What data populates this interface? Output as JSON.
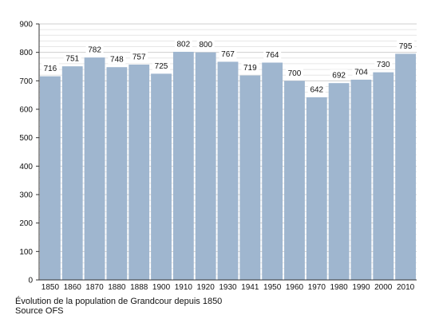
{
  "chart_data": {
    "type": "bar",
    "categories": [
      "1850",
      "1860",
      "1870",
      "1880",
      "1888",
      "1900",
      "1910",
      "1920",
      "1930",
      "1941",
      "1950",
      "1960",
      "1970",
      "1980",
      "1990",
      "2000",
      "2010"
    ],
    "values": [
      716,
      751,
      782,
      748,
      757,
      725,
      802,
      800,
      767,
      719,
      764,
      700,
      642,
      692,
      704,
      730,
      795
    ],
    "data_labels": [
      "716",
      "751",
      "782",
      "748",
      "757",
      "725",
      "802",
      "800",
      "767",
      "719",
      "764",
      "700",
      "642",
      "692",
      "704",
      "730",
      "795"
    ],
    "ylim": [
      0,
      900
    ],
    "y_ticks": [
      "0",
      "100",
      "200",
      "300",
      "400",
      "500",
      "600",
      "700",
      "800",
      "900"
    ],
    "grid": true,
    "bar_color": "#9fb6cf",
    "grid_color": "#cfcfcf",
    "title": "",
    "xlabel": "",
    "ylabel": ""
  },
  "caption": {
    "line1": "Évolution de la population de Grandcour depuis 1850",
    "line2": "Source OFS"
  }
}
